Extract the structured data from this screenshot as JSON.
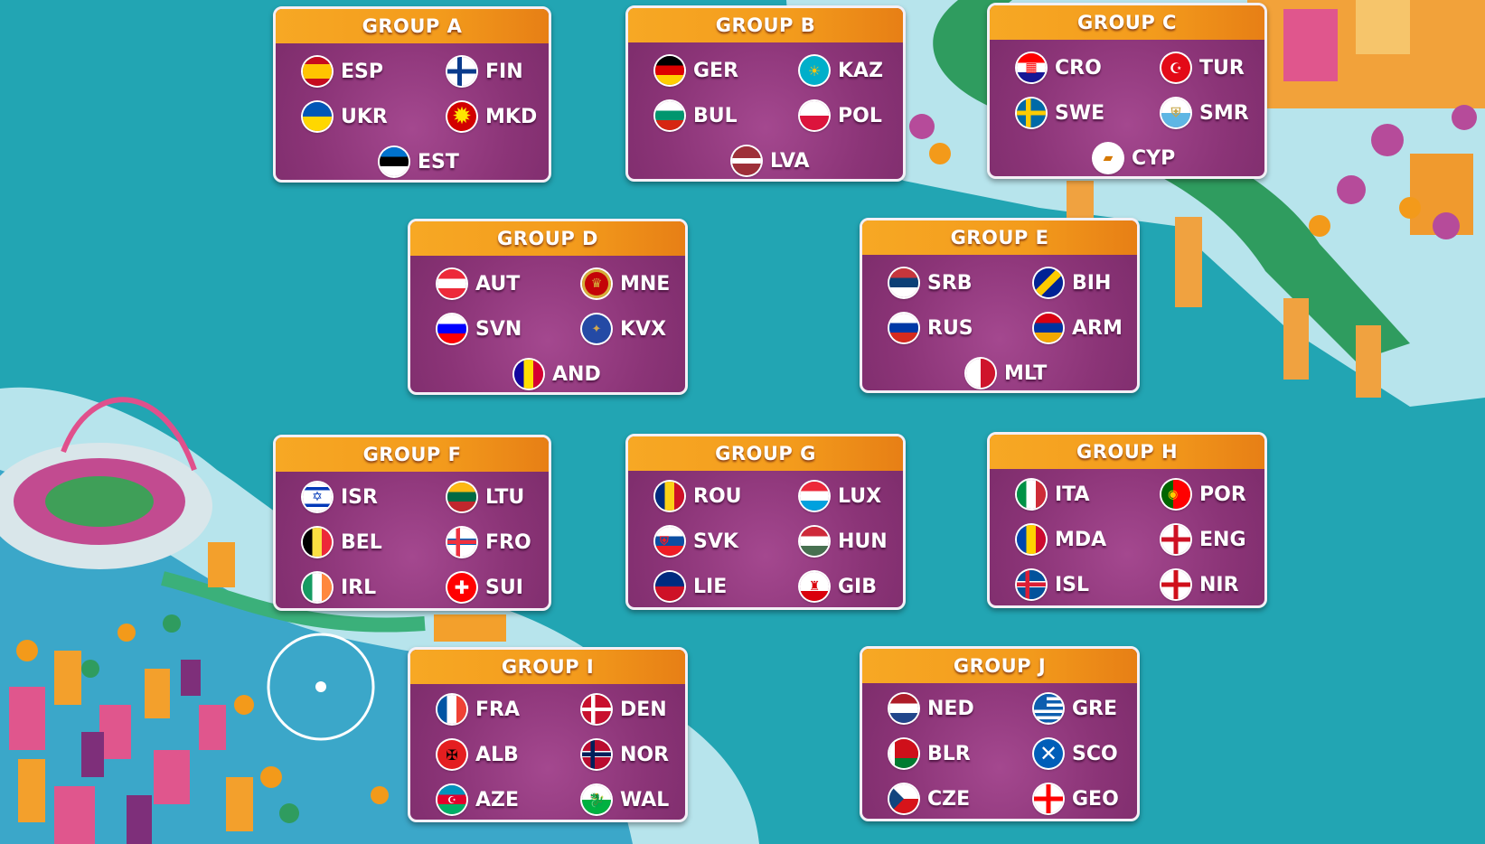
{
  "groups": [
    {
      "title": "GROUP A",
      "teams": [
        "ESP",
        "FIN",
        "UKR",
        "MKD",
        "EST"
      ]
    },
    {
      "title": "GROUP B",
      "teams": [
        "GER",
        "KAZ",
        "BUL",
        "POL",
        "LVA"
      ]
    },
    {
      "title": "GROUP C",
      "teams": [
        "CRO",
        "TUR",
        "SWE",
        "SMR",
        "CYP"
      ]
    },
    {
      "title": "GROUP D",
      "teams": [
        "AUT",
        "MNE",
        "SVN",
        "KVX",
        "AND"
      ]
    },
    {
      "title": "GROUP E",
      "teams": [
        "SRB",
        "BIH",
        "RUS",
        "ARM",
        "MLT"
      ]
    },
    {
      "title": "GROUP F",
      "teams": [
        "ISR",
        "LTU",
        "BEL",
        "FRO",
        "IRL",
        "SUI"
      ]
    },
    {
      "title": "GROUP G",
      "teams": [
        "ROU",
        "LUX",
        "SVK",
        "HUN",
        "LIE",
        "GIB"
      ]
    },
    {
      "title": "GROUP H",
      "teams": [
        "ITA",
        "POR",
        "MDA",
        "ENG",
        "ISL",
        "NIR"
      ]
    },
    {
      "title": "GROUP I",
      "teams": [
        "FRA",
        "DEN",
        "ALB",
        "NOR",
        "AZE",
        "WAL"
      ]
    },
    {
      "title": "GROUP J",
      "teams": [
        "NED",
        "GRE",
        "BLR",
        "SCO",
        "CZE",
        "GEO"
      ]
    }
  ],
  "colors": {
    "background": "#22a5b3",
    "card": "#8b3477",
    "header": "#f39b1c"
  }
}
